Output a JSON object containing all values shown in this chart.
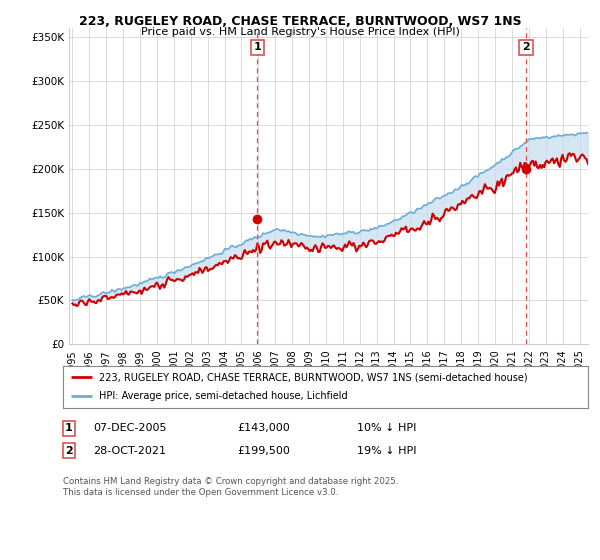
{
  "title_line1": "223, RUGELEY ROAD, CHASE TERRACE, BURNTWOOD, WS7 1NS",
  "title_line2": "Price paid vs. HM Land Registry's House Price Index (HPI)",
  "ylabel_ticks": [
    "£0",
    "£50K",
    "£100K",
    "£150K",
    "£200K",
    "£250K",
    "£300K",
    "£350K"
  ],
  "ytick_values": [
    0,
    50000,
    100000,
    150000,
    200000,
    250000,
    300000,
    350000
  ],
  "ylim": [
    0,
    360000
  ],
  "xlim_start": 1994.8,
  "xlim_end": 2025.5,
  "hpi_color": "#6baed6",
  "hpi_fill_color": "#c6dcef",
  "price_color": "#d00000",
  "dashed_color": "#e05050",
  "purchase1_x": 2005.93,
  "purchase1_y": 143000,
  "purchase2_x": 2021.83,
  "purchase2_y": 199500,
  "legend_label1": "223, RUGELEY ROAD, CHASE TERRACE, BURNTWOOD, WS7 1NS (semi-detached house)",
  "legend_label2": "HPI: Average price, semi-detached house, Lichfield",
  "annotation1_label": "1",
  "annotation2_label": "2",
  "annotation1_date": "07-DEC-2005",
  "annotation1_price": "£143,000",
  "annotation1_hpi": "10% ↓ HPI",
  "annotation2_date": "28-OCT-2021",
  "annotation2_price": "£199,500",
  "annotation2_hpi": "19% ↓ HPI",
  "footer": "Contains HM Land Registry data © Crown copyright and database right 2025.\nThis data is licensed under the Open Government Licence v3.0.",
  "bg_color": "#ffffff",
  "grid_color": "#cccccc"
}
